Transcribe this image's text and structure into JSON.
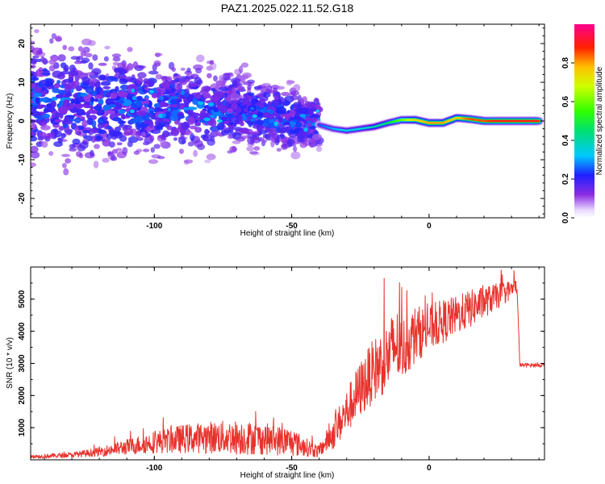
{
  "title": "PAZ1.2025.022.11.52.G18",
  "colors": {
    "snr_line": "#e8322c",
    "frame": "#000000"
  },
  "chart_data": [
    {
      "type": "heatmap",
      "title": "PAZ1.2025.022.11.52.G18",
      "xlabel": "Height of straight line (km)",
      "ylabel": "Frequency (Hz)",
      "xlim": [
        -145,
        42
      ],
      "ylim": [
        -25,
        25
      ],
      "xticks": [
        -100,
        -50,
        0
      ],
      "yticks": [
        -20,
        -10,
        0,
        10,
        20
      ],
      "colorbar": {
        "label": "Normalized spectral amplitude",
        "range": [
          0.0,
          1.0
        ],
        "ticks": [
          0.0,
          0.2,
          0.4,
          0.6,
          0.8
        ],
        "colormap": "rainbow (violet-blue-cyan-green-yellow-red-magenta)"
      },
      "ridge": {
        "x": [
          -40,
          -35,
          -30,
          -25,
          -20,
          -15,
          -10,
          -5,
          0,
          5,
          10,
          15,
          20,
          25,
          30,
          35,
          40
        ],
        "y": [
          -1,
          -2,
          -2.5,
          -2,
          -1.5,
          -0.5,
          0.3,
          0.3,
          -0.5,
          -0.5,
          0.8,
          0.5,
          0,
          0,
          0,
          0,
          0
        ],
        "amplitude": [
          0.25,
          0.3,
          0.35,
          0.35,
          0.4,
          0.45,
          0.6,
          0.75,
          0.8,
          0.8,
          0.75,
          0.85,
          0.85,
          0.9,
          0.9,
          0.9,
          0.9
        ]
      },
      "scatter_region": {
        "x_range": [
          -145,
          -40
        ],
        "center_freq": [
          {
            "x": -140,
            "y": 5
          },
          {
            "x": -120,
            "y": 4
          },
          {
            "x": -100,
            "y": 4
          },
          {
            "x": -80,
            "y": 3
          },
          {
            "x": -60,
            "y": 2
          },
          {
            "x": -45,
            "y": 0
          }
        ],
        "amplitude_range": [
          0.05,
          0.3
        ]
      }
    },
    {
      "type": "line",
      "xlabel": "Height of straight line (km)",
      "ylabel": "SNR (10 * v/v)",
      "xlim": [
        -145,
        42
      ],
      "ylim": [
        0,
        6000
      ],
      "xticks": [
        -100,
        -50,
        0
      ],
      "yticks": [
        1000,
        2000,
        3000,
        4000,
        5000
      ],
      "series": [
        {
          "x": [
            -145,
            -130,
            -120,
            -110,
            -100,
            -90,
            -80,
            -70,
            -60,
            -50,
            -45,
            -40,
            -38,
            -35,
            -30,
            -25,
            -20,
            -15,
            -12,
            -10,
            -5,
            0,
            5,
            10,
            15,
            20,
            25,
            30,
            32,
            33,
            35,
            40,
            42
          ],
          "y": [
            100,
            150,
            250,
            400,
            550,
            650,
            700,
            700,
            650,
            550,
            400,
            250,
            500,
            800,
            1500,
            2200,
            2800,
            3200,
            3600,
            3400,
            3900,
            4100,
            4300,
            4500,
            4700,
            4900,
            5100,
            5300,
            5400,
            2950,
            2950,
            2950,
            2950
          ],
          "noise_amplitude": [
            60,
            80,
            150,
            250,
            350,
            450,
            500,
            550,
            500,
            450,
            300,
            200,
            300,
            500,
            700,
            900,
            1000,
            1100,
            1200,
            1000,
            900,
            700,
            700,
            600,
            600,
            500,
            400,
            300,
            250,
            60,
            60,
            60,
            60
          ]
        }
      ]
    }
  ]
}
